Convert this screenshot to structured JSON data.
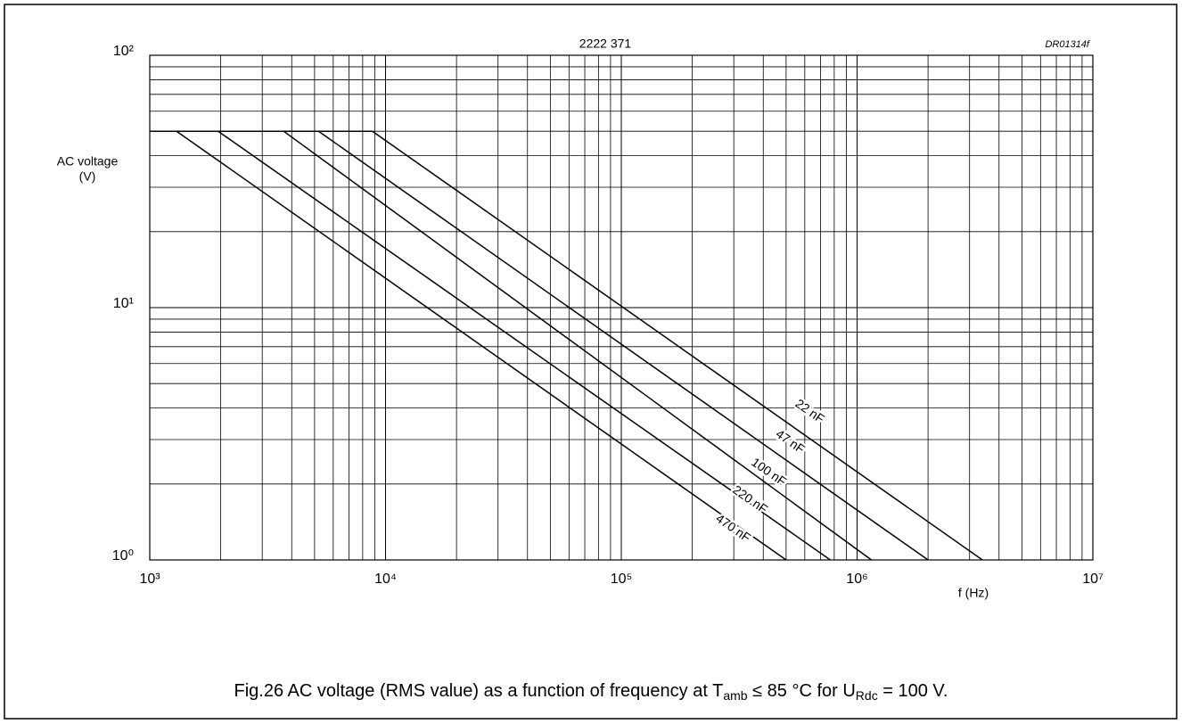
{
  "chart_data": {
    "type": "line",
    "title": "2222 371",
    "drawing_code": "DR01314f",
    "ylabel": [
      "AC voltage",
      "(V)"
    ],
    "xlabel": "f (Hz)",
    "caption": [
      "Fig.26  AC voltage (RMS value) as a function of frequency at T",
      "amb",
      " ≤ 85 °C for U",
      "Rdc",
      " = 100 V."
    ],
    "log_x": true,
    "log_y": true,
    "grid": true,
    "xlim": [
      1000,
      10000000
    ],
    "ylim": [
      1,
      100
    ],
    "xticks": [
      {
        "value": 1000,
        "label": "10³"
      },
      {
        "value": 10000,
        "label": "10⁴"
      },
      {
        "value": 100000,
        "label": "10⁵"
      },
      {
        "value": 1000000,
        "label": "10⁶"
      },
      {
        "value": 10000000,
        "label": "10⁷"
      }
    ],
    "yticks": [
      {
        "value": 1,
        "label": "10⁰"
      },
      {
        "value": 10,
        "label": "10¹"
      },
      {
        "value": 100,
        "label": "10²"
      }
    ],
    "xminor": [
      2000,
      3000,
      4000,
      5000,
      6000,
      7000,
      8000,
      9000,
      20000,
      30000,
      40000,
      50000,
      60000,
      70000,
      80000,
      90000,
      200000,
      300000,
      400000,
      500000,
      600000,
      700000,
      800000,
      900000,
      2000000,
      3000000,
      4000000,
      5000000,
      6000000,
      7000000,
      8000000,
      9000000
    ],
    "yminor": [
      2,
      3,
      4,
      5,
      6,
      7,
      8,
      9,
      20,
      30,
      40,
      50,
      60,
      70,
      80,
      90
    ],
    "series": [
      {
        "name": "22 nF",
        "color": "#000000",
        "x": [
          1000,
          8800,
          3400000
        ],
        "values": [
          50,
          50,
          1
        ]
      },
      {
        "name": "47 nF",
        "color": "#000000",
        "x": [
          1000,
          5200,
          2000000
        ],
        "values": [
          50,
          50,
          1
        ]
      },
      {
        "name": "100 nF",
        "color": "#000000",
        "x": [
          1000,
          3700,
          1150000
        ],
        "values": [
          50,
          50,
          1
        ]
      },
      {
        "name": "220 nF",
        "color": "#000000",
        "x": [
          1000,
          1950,
          770000
        ],
        "values": [
          50,
          50,
          1
        ]
      },
      {
        "name": "470 nF",
        "color": "#000000",
        "x": [
          1000,
          1300,
          500000
        ],
        "values": [
          50,
          50,
          1
        ]
      }
    ]
  }
}
